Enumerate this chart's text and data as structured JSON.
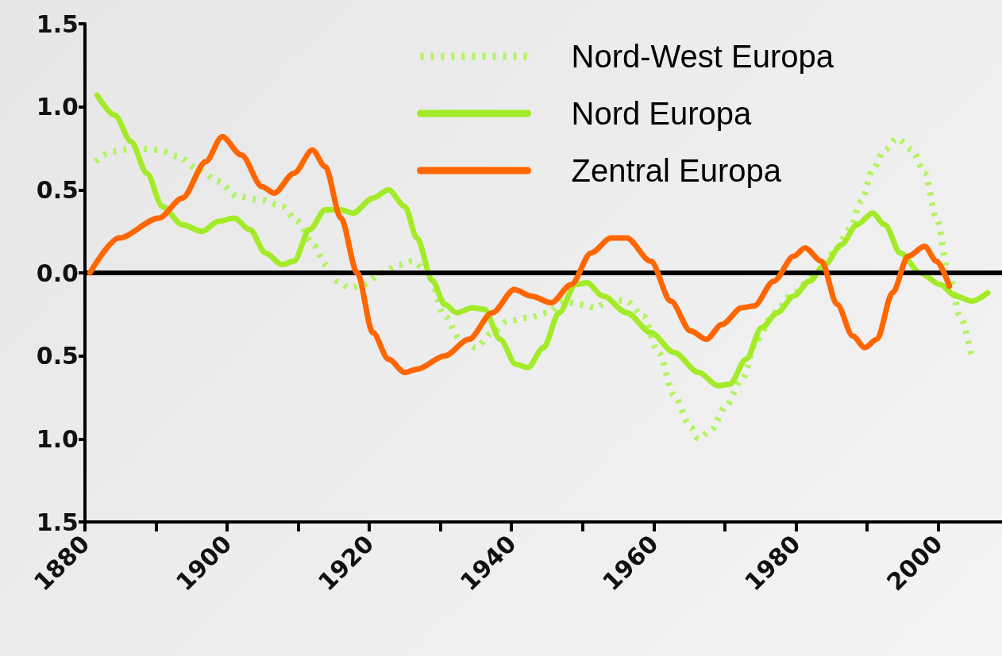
{
  "chart_data": {
    "type": "line",
    "xlim": [
      1880,
      2009
    ],
    "ylim": [
      -1.5,
      1.5
    ],
    "xticks": [
      1880,
      {
        "value": 1890,
        "label": null
      },
      1900,
      {
        "value": 1910,
        "label": null
      },
      1920,
      {
        "value": 1930,
        "label": null
      },
      1940,
      {
        "value": 1950,
        "label": null
      },
      1960,
      {
        "value": 1970,
        "label": null
      },
      1980,
      {
        "value": 1990,
        "label": null
      },
      2000
    ],
    "yticks": [
      {
        "value": -1.5,
        "label": "1.5"
      },
      {
        "value": -1.0,
        "label": "1.0"
      },
      {
        "value": -0.5,
        "label": "0.5"
      },
      {
        "value": 0,
        "label": "0.0"
      },
      {
        "value": 0.5,
        "label": "0.5"
      },
      {
        "value": 1.0,
        "label": "1.0"
      },
      {
        "value": 1.5,
        "label": "1.5"
      }
    ],
    "legend": "top right",
    "marker": "none",
    "grid": false,
    "ref_lines": [
      {
        "axis": "y",
        "value": 0,
        "color": "#000000",
        "line_style": "solid"
      }
    ],
    "series": [
      {
        "name": "Nord-West Europa",
        "color": "#b2f460",
        "line_style": "dotted",
        "x": [
          1881.5,
          1883.7,
          1887,
          1890.4,
          1893.2,
          1896,
          1898.8,
          1901.5,
          1904.9,
          1907.7,
          1909.9,
          1912.1,
          1913.8,
          1915.5,
          1917.2,
          1919.4,
          1921.6,
          1924.4,
          1926.1,
          1928.3,
          1930.6,
          1932.8,
          1935,
          1937.3,
          1939.5,
          1942.3,
          1945.1,
          1947.3,
          1949.5,
          1951.8,
          1954,
          1956.2,
          1958.5,
          1960.7,
          1962.9,
          1965.2,
          1966.3,
          1968,
          1970.2,
          1972.4,
          1974.6,
          1976.9,
          1979.7,
          1982.5,
          1985.3,
          1987.5,
          1989.2,
          1990.8,
          1992.5,
          1994.2,
          1996.4,
          1998.1,
          1999.8,
          2001.4,
          2003.1,
          2004.8
        ],
        "values": [
          0.67,
          0.73,
          0.75,
          0.74,
          0.7,
          0.62,
          0.55,
          0.46,
          0.44,
          0.4,
          0.31,
          0.17,
          0.05,
          -0.05,
          -0.09,
          -0.07,
          0.0,
          0.05,
          0.07,
          0.0,
          -0.26,
          -0.4,
          -0.45,
          -0.36,
          -0.29,
          -0.27,
          -0.24,
          -0.17,
          -0.19,
          -0.21,
          -0.16,
          -0.17,
          -0.26,
          -0.48,
          -0.74,
          -0.93,
          -1.0,
          -0.95,
          -0.8,
          -0.64,
          -0.4,
          -0.24,
          -0.12,
          -0.02,
          0.12,
          0.26,
          0.43,
          0.62,
          0.74,
          0.81,
          0.74,
          0.6,
          0.33,
          0.02,
          -0.26,
          -0.52
        ]
      },
      {
        "name": "Nord Europa",
        "color": "#a3eb28",
        "line_style": "solid",
        "x": [
          1881.7,
          1884.2,
          1886.5,
          1888.7,
          1890.9,
          1893.7,
          1896.5,
          1898.8,
          1901,
          1903.2,
          1905.4,
          1907.7,
          1909.4,
          1911.6,
          1913.8,
          1916,
          1917.7,
          1920.5,
          1922.7,
          1925,
          1926.7,
          1928.9,
          1930.6,
          1932.3,
          1934.5,
          1936.2,
          1938.4,
          1940.6,
          1942.3,
          1944.5,
          1946.7,
          1949,
          1950.6,
          1952.9,
          1956.2,
          1959.6,
          1962.9,
          1966.3,
          1969.1,
          1970.7,
          1973,
          1975.2,
          1977.4,
          1979.7,
          1981.9,
          1984.1,
          1986.4,
          1988.6,
          1990.8,
          1992.5,
          1994.7,
          1997.5,
          2000.3,
          2002.5,
          2004.8,
          2007
        ],
        "values": [
          1.07,
          0.95,
          0.79,
          0.6,
          0.4,
          0.29,
          0.25,
          0.31,
          0.33,
          0.26,
          0.12,
          0.05,
          0.07,
          0.26,
          0.38,
          0.38,
          0.36,
          0.45,
          0.5,
          0.4,
          0.21,
          -0.05,
          -0.19,
          -0.24,
          -0.21,
          -0.22,
          -0.4,
          -0.55,
          -0.57,
          -0.45,
          -0.24,
          -0.07,
          -0.06,
          -0.14,
          -0.24,
          -0.36,
          -0.48,
          -0.6,
          -0.68,
          -0.67,
          -0.52,
          -0.33,
          -0.24,
          -0.14,
          -0.05,
          0.05,
          0.17,
          0.29,
          0.36,
          0.29,
          0.12,
          0.0,
          -0.07,
          -0.14,
          -0.17,
          -0.12
        ]
      },
      {
        "name": "Zentral Europa",
        "color": "#ff6600",
        "line_style": "solid",
        "x": [
          1880.7,
          1884.8,
          1890.4,
          1893.7,
          1897,
          1899.3,
          1902,
          1904.9,
          1906.6,
          1909.4,
          1912,
          1913.8,
          1916,
          1918.3,
          1920.5,
          1922.7,
          1925,
          1926.7,
          1930.6,
          1934,
          1937.3,
          1940.4,
          1942.8,
          1945.6,
          1948.4,
          1951.2,
          1954,
          1956.2,
          1959.6,
          1962.4,
          1965.2,
          1967.4,
          1969.6,
          1972.4,
          1974.1,
          1976.9,
          1979.7,
          1981.3,
          1983.6,
          1985.8,
          1988,
          1989.7,
          1991.4,
          1993.6,
          1995.8,
          1998.1,
          1999.8,
          2001.6
        ],
        "values": [
          0.0,
          0.21,
          0.33,
          0.45,
          0.67,
          0.82,
          0.71,
          0.52,
          0.48,
          0.6,
          0.74,
          0.64,
          0.33,
          0.0,
          -0.36,
          -0.52,
          -0.6,
          -0.58,
          -0.5,
          -0.4,
          -0.24,
          -0.1,
          -0.14,
          -0.18,
          -0.07,
          0.12,
          0.21,
          0.21,
          0.07,
          -0.17,
          -0.35,
          -0.4,
          -0.31,
          -0.21,
          -0.2,
          -0.05,
          0.1,
          0.15,
          0.07,
          -0.19,
          -0.38,
          -0.45,
          -0.4,
          -0.12,
          0.1,
          0.16,
          0.07,
          -0.08
        ]
      }
    ]
  }
}
